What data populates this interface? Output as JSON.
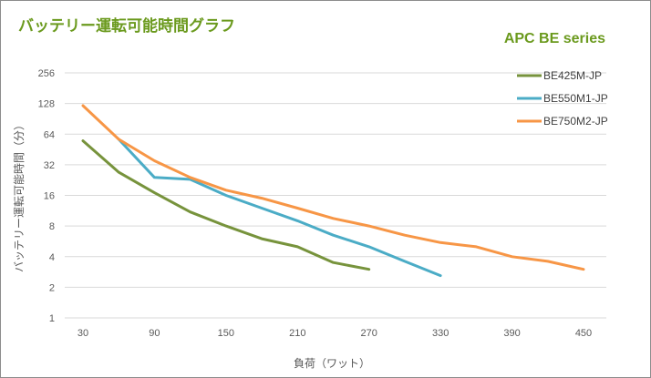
{
  "chart_data": {
    "type": "line",
    "title": "バッテリー運転可能時間グラフ",
    "subtitle": "APC BE series",
    "xlabel": "負荷（ワット）",
    "ylabel": "バッテリー運転可能時間（分）",
    "y_scale": "log2",
    "ylim": [
      1,
      256
    ],
    "y_ticks": [
      1,
      2,
      4,
      8,
      16,
      32,
      64,
      128,
      256
    ],
    "x_ticks": [
      30,
      90,
      150,
      210,
      270,
      330,
      390,
      450
    ],
    "x": [
      30,
      60,
      90,
      120,
      150,
      180,
      210,
      240,
      270,
      300,
      330,
      360,
      390,
      420,
      450
    ],
    "grid": "horizontal",
    "legend_position": "top-right",
    "series": [
      {
        "name": "BE425M-JP",
        "color": "#77933c",
        "values": [
          55,
          27,
          17,
          11,
          8,
          6,
          5,
          3.5,
          3,
          null,
          null,
          null,
          null,
          null,
          null
        ]
      },
      {
        "name": "BE550M1-JP",
        "color": "#4bacc6",
        "values": [
          null,
          57,
          24,
          23,
          16,
          12,
          9,
          6.5,
          5,
          3.6,
          2.6,
          null,
          null,
          null,
          null
        ]
      },
      {
        "name": "BE750M2-JP",
        "color": "#f79646",
        "values": [
          122,
          57,
          35,
          24,
          18,
          15,
          12,
          9.5,
          8,
          6.5,
          5.5,
          5,
          4,
          3.6,
          3
        ]
      }
    ]
  }
}
